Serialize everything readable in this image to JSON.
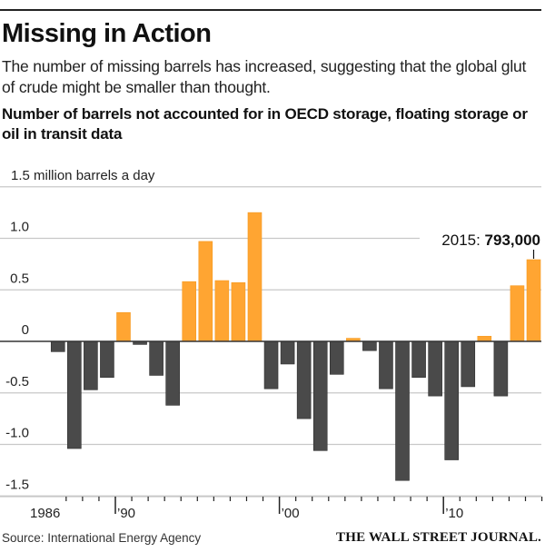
{
  "header": {
    "title": "Missing in Action",
    "subtitle": "The number of missing barrels has increased, suggesting that the global glut of crude might be smaller than thought.",
    "chart_heading": "Number of barrels not accounted for in OECD storage, floating storage or oil in transit data"
  },
  "footer": {
    "source": "Source: International Energy Agency",
    "publisher": "THE WALL STREET JOURNAL."
  },
  "colors": {
    "positive": "#FFA532",
    "negative": "#4A4A4A",
    "gridline": "#C8C8C8",
    "zero_line": "#333333"
  },
  "chart_data": {
    "type": "bar",
    "title": "Number of barrels not accounted for in OECD storage, floating storage or oil in transit data",
    "ylabel": "million barrels a day",
    "xlabel": "",
    "unit_label": "1.5 million barrels a day",
    "ylim": [
      -1.5,
      1.5
    ],
    "yticks": [
      1.5,
      1.0,
      0.5,
      0,
      -0.5,
      -1.0,
      -1.5
    ],
    "ytick_labels": [
      "1.5",
      "1.0",
      "0.5",
      "0",
      "-0.5",
      "-1.0",
      "-1.5"
    ],
    "grid": true,
    "categories": [
      1986,
      1987,
      1988,
      1989,
      1990,
      1991,
      1992,
      1993,
      1994,
      1995,
      1996,
      1997,
      1998,
      1999,
      2000,
      2001,
      2002,
      2003,
      2004,
      2005,
      2006,
      2007,
      2008,
      2009,
      2010,
      2011,
      2012,
      2013,
      2014,
      2015
    ],
    "values": [
      -0.1,
      -1.04,
      -0.47,
      -0.35,
      0.28,
      -0.03,
      -0.33,
      -0.62,
      0.58,
      0.97,
      0.59,
      0.57,
      1.25,
      -0.46,
      -0.22,
      -0.75,
      -1.06,
      -0.32,
      0.03,
      -0.09,
      -0.46,
      -1.35,
      -0.35,
      -0.53,
      -1.15,
      -0.44,
      0.05,
      -0.53,
      0.54,
      0.793
    ],
    "xtick_labels": [
      {
        "year": 1986,
        "label": "1986"
      },
      {
        "year": 1990,
        "label": "’90"
      },
      {
        "year": 2000,
        "label": "’00"
      },
      {
        "year": 2010,
        "label": "’10"
      }
    ],
    "annotation": {
      "year": 2015,
      "prefix": "2015: ",
      "value_text": "793,000"
    }
  }
}
